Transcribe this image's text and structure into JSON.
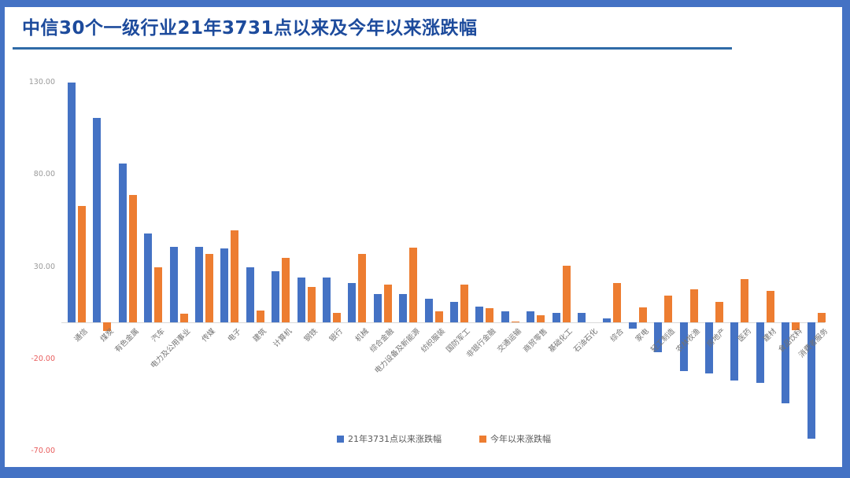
{
  "header": {
    "title": "中信30个一级行业21年3731点以来及今年以来涨跌幅"
  },
  "colors": {
    "frame_blue": "#4472C4",
    "title_blue": "#1d4b9c",
    "underline_blue": "#2f6ba7",
    "bar_blue": "#4472C4",
    "bar_orange": "#ED7D31",
    "tick_gray": "#9a9a9a",
    "tick_negative_red": "#e85c5c",
    "axis_line_gray": "#d9d9d9",
    "category_label_gray": "#737373"
  },
  "chart_data": {
    "type": "bar",
    "title": "中信30个一级行业21年3731点以来及今年以来涨跌幅",
    "xlabel": "",
    "ylabel": "",
    "ylim": [
      -70,
      130
    ],
    "grid": false,
    "legend_position": "bottom-center",
    "y_ticks": [
      {
        "label": "130.00",
        "value": 130
      },
      {
        "label": "80.00",
        "value": 80
      },
      {
        "label": "30.00",
        "value": 30
      },
      {
        "label": "-20.00",
        "value": -20
      },
      {
        "label": "-70.00",
        "value": -70
      }
    ],
    "categories": [
      "通信",
      "煤炭",
      "有色金属",
      "汽车",
      "电力及公用事业",
      "传媒",
      "电子",
      "建筑",
      "计算机",
      "钢铁",
      "银行",
      "机械",
      "综合金融",
      "电力设备及新能源",
      "纺织服装",
      "国防军工",
      "非银行金融",
      "交通运输",
      "商贸零售",
      "基础化工",
      "石油石化",
      "综合",
      "家电",
      "轻工制造",
      "农林牧渔",
      "房地产",
      "医药",
      "建材",
      "食品饮料",
      "消费者服务"
    ],
    "series": [
      {
        "id": "since-3731",
        "name": "21年3731点以来涨跌幅",
        "color": "#4472C4",
        "values": [
          130,
          111,
          86,
          48,
          41,
          41,
          40,
          30,
          27.5,
          24.5,
          24.5,
          21.5,
          15.5,
          15.5,
          13,
          11,
          8.5,
          6,
          6,
          5,
          5,
          2,
          -3.5,
          -16,
          -26.5,
          -27.5,
          -31.5,
          -33,
          -44,
          -63
        ]
      },
      {
        "id": "ytd",
        "name": "今年以来涨跌幅",
        "color": "#ED7D31",
        "values": [
          63,
          -4.5,
          69,
          30,
          4.5,
          37,
          50,
          6.5,
          35,
          19,
          5,
          37,
          20.5,
          40.5,
          6,
          20.5,
          7.5,
          0.5,
          4,
          30.5,
          0,
          21.5,
          8,
          14.5,
          18,
          11,
          23.5,
          17,
          -4.2,
          5
        ]
      }
    ]
  }
}
